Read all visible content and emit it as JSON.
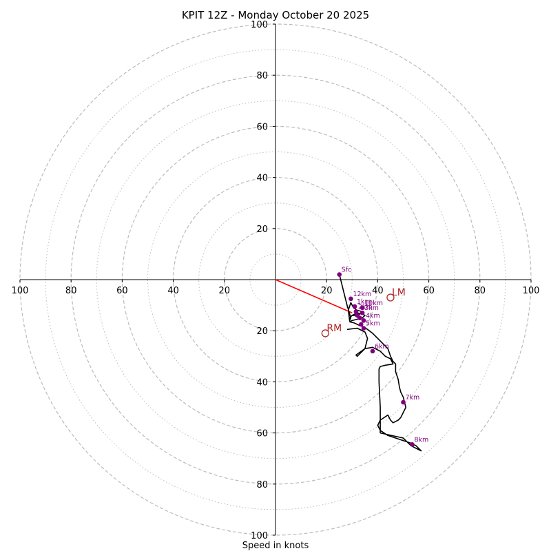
{
  "chart_data": {
    "type": "hodograph",
    "title": "KPIT 12Z - Monday October 20 2025",
    "xlabel": "Speed in knots",
    "xlim": [
      -100,
      100
    ],
    "ylim": [
      -100,
      100
    ],
    "major_rings": [
      20,
      40,
      60,
      80,
      100
    ],
    "minor_rings": [
      10,
      30,
      50,
      70,
      90
    ],
    "x_tick_labels": [
      {
        "value": -100,
        "text": "100"
      },
      {
        "value": -80,
        "text": "80"
      },
      {
        "value": -60,
        "text": "60"
      },
      {
        "value": -40,
        "text": "40"
      },
      {
        "value": -20,
        "text": "20"
      },
      {
        "value": 20,
        "text": "20"
      },
      {
        "value": 40,
        "text": "40"
      },
      {
        "value": 60,
        "text": "60"
      },
      {
        "value": 80,
        "text": "80"
      },
      {
        "value": 100,
        "text": "100"
      }
    ],
    "y_tick_labels": [
      {
        "value": 100,
        "text": "100"
      },
      {
        "value": 80,
        "text": "80"
      },
      {
        "value": 60,
        "text": "60"
      },
      {
        "value": 40,
        "text": "40"
      },
      {
        "value": 20,
        "text": "20"
      },
      {
        "value": -20,
        "text": "20"
      },
      {
        "value": -40,
        "text": "40"
      },
      {
        "value": -60,
        "text": "60"
      },
      {
        "value": -80,
        "text": "80"
      },
      {
        "value": -100,
        "text": "100"
      }
    ],
    "hodograph_trace": {
      "u": [
        25,
        26.5,
        28,
        29.5,
        29,
        28.5,
        29.5,
        30.5,
        32,
        34,
        33,
        31,
        30,
        29,
        30,
        32,
        34,
        35,
        34,
        32,
        30,
        29,
        31,
        33,
        34.5,
        36,
        38,
        40,
        42,
        44,
        45,
        46,
        47,
        47,
        48,
        48.5,
        49,
        50,
        50.5,
        51,
        50,
        49,
        48,
        47,
        46,
        45,
        44,
        41,
        40,
        40.5,
        41,
        44,
        47,
        50,
        53,
        55,
        56,
        57,
        55,
        53,
        52,
        51,
        50,
        41,
        41,
        40.5,
        40.5,
        41,
        43,
        46,
        45,
        43,
        41,
        38,
        35,
        31.5,
        32,
        33,
        35,
        36,
        35,
        32,
        28
      ],
      "v": [
        2,
        -4,
        -10,
        -15,
        -16,
        -12,
        -9,
        -11,
        -12,
        -12.5,
        -13.5,
        -14,
        -14,
        -15,
        -14,
        -13,
        -13.5,
        -14,
        -15,
        -15.5,
        -16,
        -16.5,
        -17,
        -18,
        -18.5,
        -19.5,
        -21,
        -23,
        -25,
        -27,
        -30,
        -32,
        -33,
        -36,
        -39,
        -42,
        -44,
        -46,
        -48,
        -50,
        -52,
        -54,
        -55,
        -55.5,
        -56,
        -55,
        -53,
        -55,
        -57,
        -58,
        -59,
        -61,
        -62,
        -63,
        -64,
        -65,
        -66,
        -67,
        -66,
        -65,
        -64,
        -63,
        -62,
        -60,
        -50,
        -40,
        -35,
        -34,
        -33.5,
        -33,
        -31,
        -30,
        -28,
        -26.5,
        -27,
        -29.5,
        -30,
        -29,
        -27,
        -23,
        -20.5,
        -19,
        -19.5
      ]
    },
    "height_points": [
      {
        "label": "Sfc",
        "u": 25,
        "v": 2
      },
      {
        "label": "12km",
        "u": 29.5,
        "v": -7.5
      },
      {
        "label": "1km",
        "u": 31,
        "v": -10.5
      },
      {
        "label": "10km",
        "u": 34,
        "v": -11
      },
      {
        "label": "2km",
        "u": 31.5,
        "v": -12.5
      },
      {
        "label": "3km",
        "u": 34,
        "v": -13
      },
      {
        "label": "4km",
        "u": 34.5,
        "v": -16
      },
      {
        "label": "5km",
        "u": 34.5,
        "v": -19
      },
      {
        "label": "6km",
        "u": 38,
        "v": -28
      },
      {
        "label": "7km",
        "u": 50,
        "v": -48
      },
      {
        "label": "8km",
        "u": 53.5,
        "v": -64.5
      }
    ],
    "hidden_points": [
      {
        "u": 33,
        "v": -15
      },
      {
        "u": 33.5,
        "v": -17.5
      },
      {
        "u": 32,
        "v": -14
      }
    ],
    "bunkers_vector": {
      "u_start": 0,
      "v_start": 0,
      "u_end": 30,
      "v_end": -13
    },
    "storm_motion": [
      {
        "label": "RM",
        "u": 19.5,
        "v": -21
      },
      {
        "label": "LM",
        "u": 45,
        "v": -7
      }
    ],
    "colors": {
      "trace": "#000000",
      "points": "#800080",
      "vector": "#ff0000",
      "storm": "#b22222",
      "grid": "#bbbbbb",
      "axis": "#000000"
    }
  }
}
